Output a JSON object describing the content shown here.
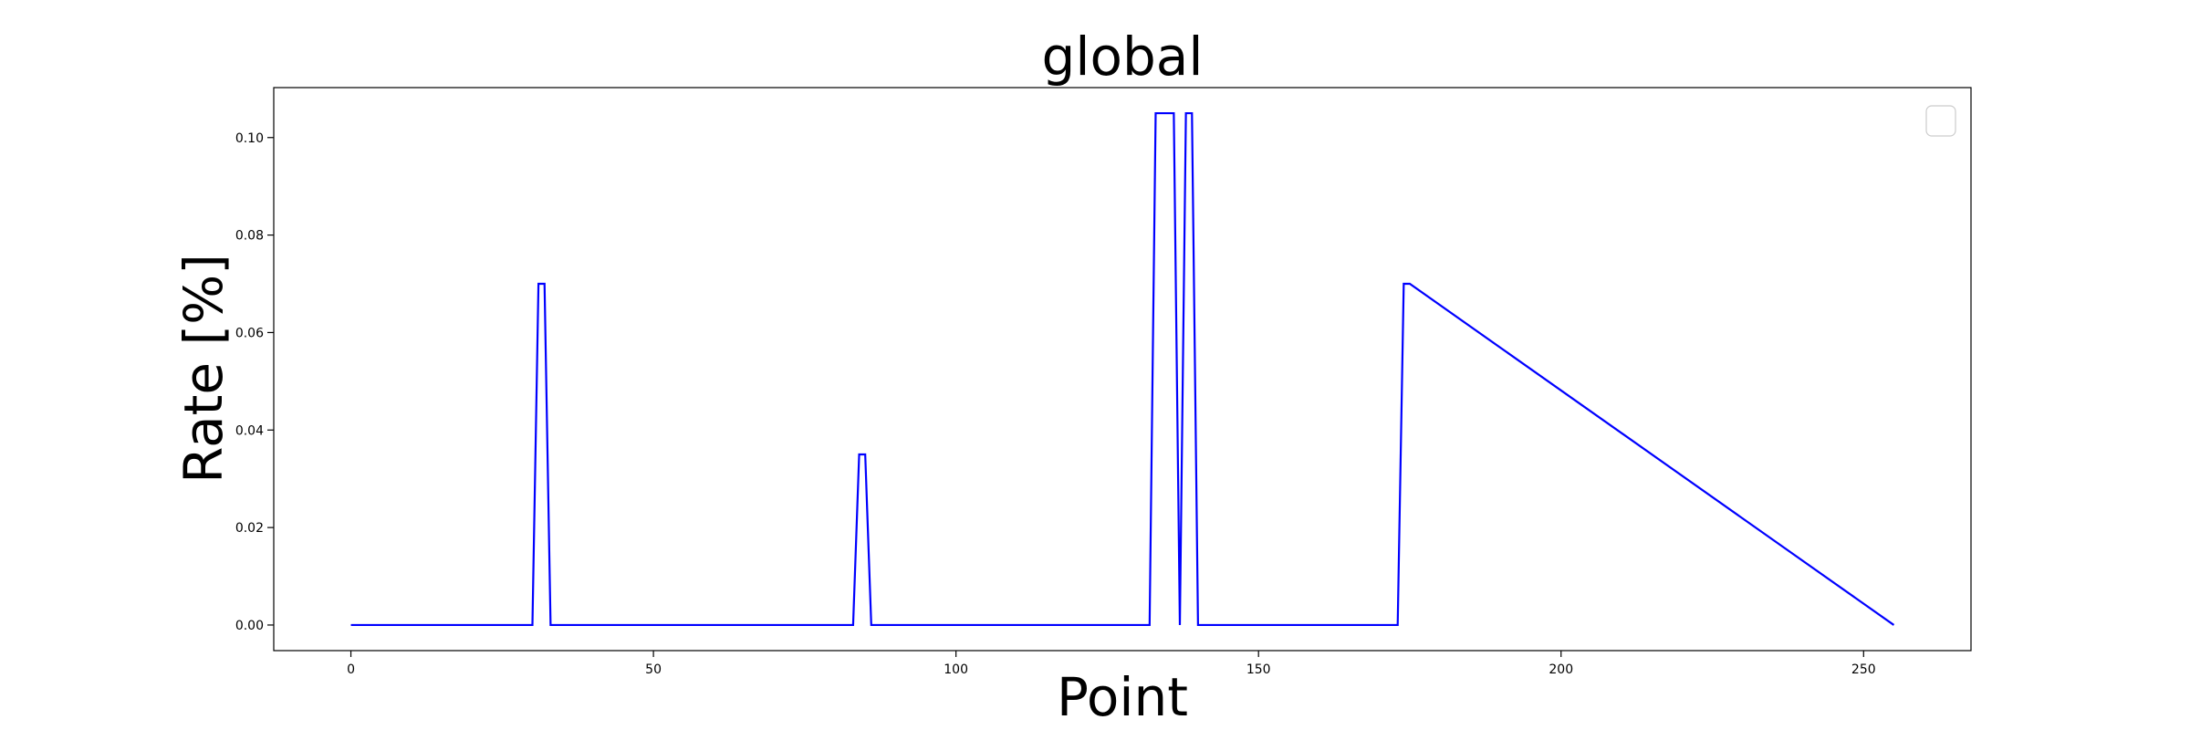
{
  "chart_data": {
    "type": "line",
    "title": "global",
    "xlabel": "Point",
    "ylabel": "Rate [%]",
    "xlim": [
      -12.75,
      267.75
    ],
    "ylim": [
      -0.00525,
      0.11025
    ],
    "xticks": [
      0,
      50,
      100,
      150,
      200,
      250
    ],
    "xtick_labels": [
      "0",
      "50",
      "100",
      "150",
      "200",
      "250"
    ],
    "yticks": [
      0.0,
      0.02,
      0.04,
      0.06,
      0.08,
      0.1
    ],
    "ytick_labels": [
      "0.00",
      "0.02",
      "0.04",
      "0.06",
      "0.08",
      "0.10"
    ],
    "grid": false,
    "legend": {
      "placement": "top-right",
      "entries": []
    },
    "series": [
      {
        "name": "global",
        "color": "#0000ff",
        "x": [
          0,
          30,
          31,
          32,
          33,
          83,
          84,
          85,
          86,
          132,
          133,
          134,
          135,
          136,
          137,
          138,
          139,
          140,
          173,
          174,
          175,
          255
        ],
        "y": [
          0,
          0,
          0.07,
          0.07,
          0,
          0,
          0.035,
          0.035,
          0,
          0,
          0.105,
          0.105,
          0.105,
          0.105,
          0,
          0.105,
          0.105,
          0,
          0,
          0.07,
          0.07,
          0
        ]
      }
    ]
  }
}
